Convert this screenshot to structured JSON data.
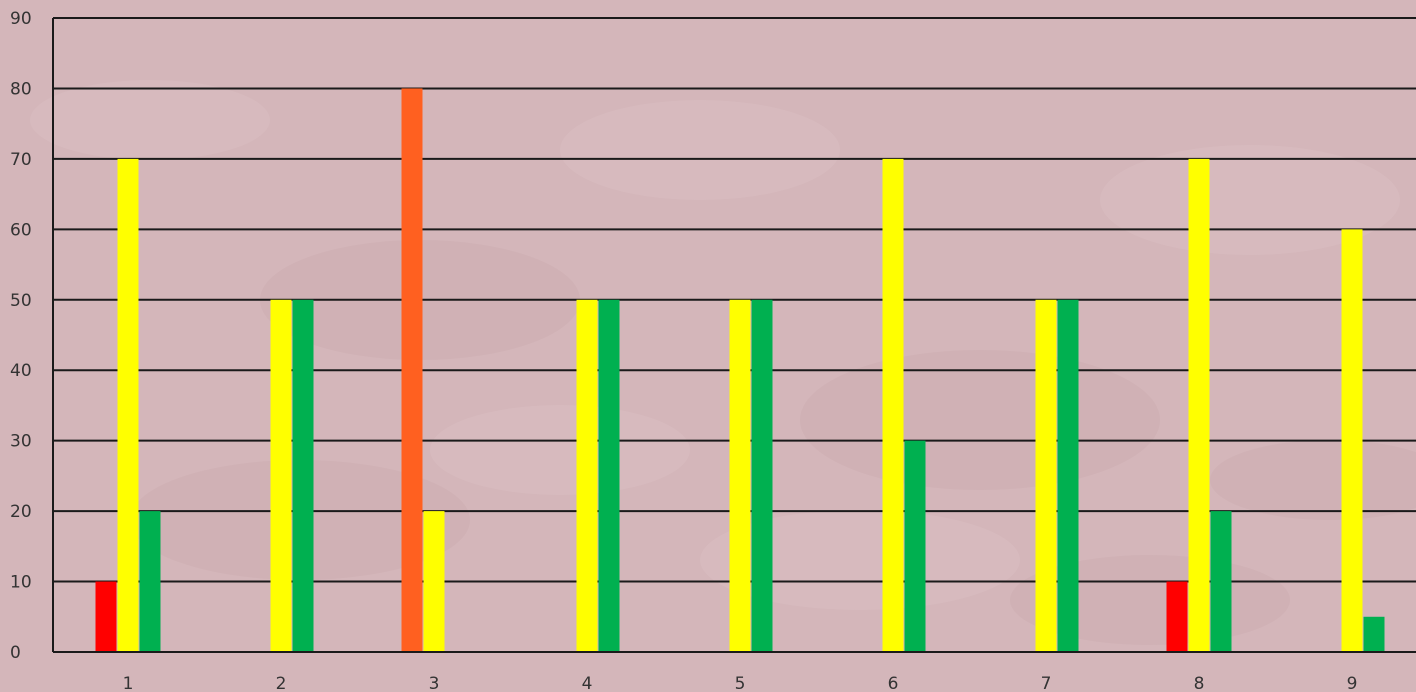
{
  "chart_data": {
    "type": "bar",
    "title": "",
    "xlabel": "",
    "ylabel": "",
    "categories": [
      "1",
      "2",
      "3",
      "4",
      "5",
      "6",
      "7",
      "8",
      "9"
    ],
    "ylim": [
      0,
      90
    ],
    "yticks": [
      0,
      10,
      20,
      30,
      40,
      50,
      60,
      70,
      80,
      90
    ],
    "grid": true,
    "legend": "none",
    "series": [
      {
        "color": "#ff0000",
        "values": [
          10,
          0,
          0,
          0,
          0,
          0,
          0,
          10,
          0
        ]
      },
      {
        "color": "#ffff00",
        "values": [
          70,
          50,
          20,
          50,
          50,
          70,
          50,
          70,
          60
        ]
      },
      {
        "color": "#00b050",
        "values": [
          20,
          50,
          0,
          50,
          50,
          30,
          50,
          20,
          5
        ]
      }
    ],
    "highlight": {
      "category": "3",
      "value": 80,
      "color": "#ff6020"
    }
  },
  "colors": {
    "background": "#d4b6ba",
    "gridline": "#1a1a1a",
    "axis": "#1a1a1a"
  }
}
